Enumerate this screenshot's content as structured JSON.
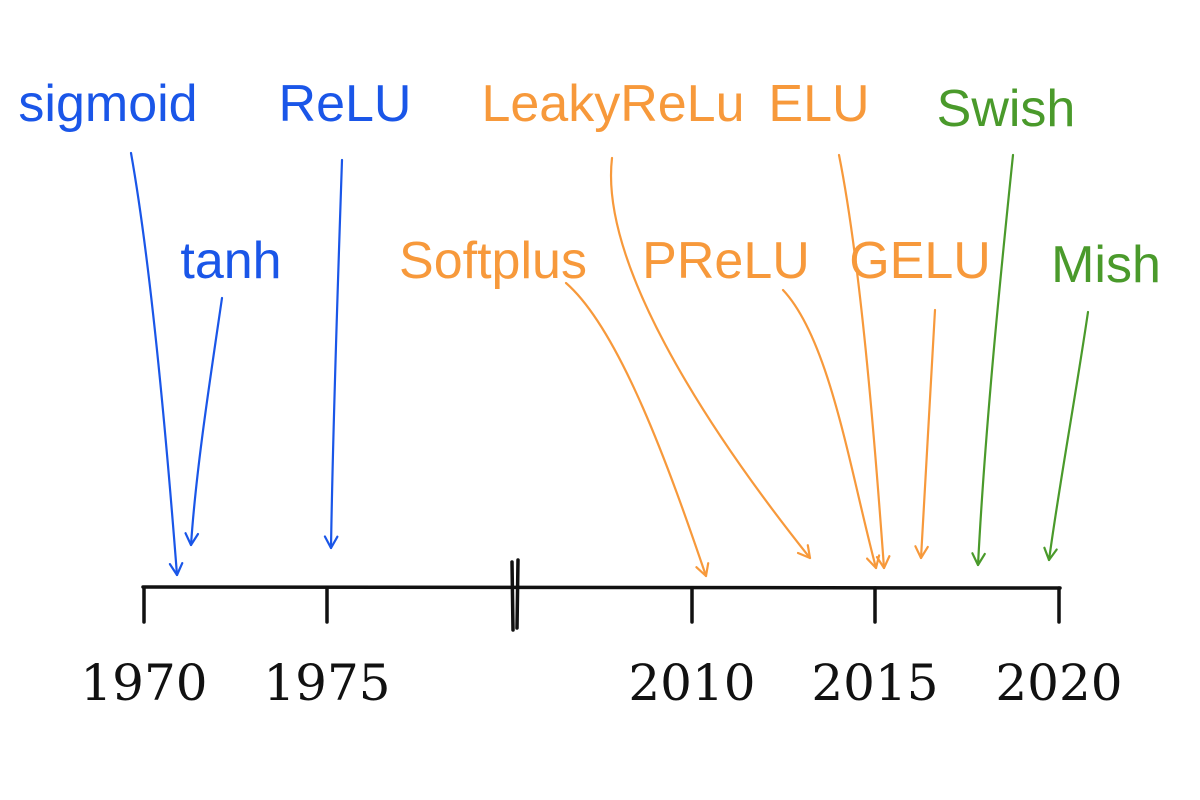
{
  "colors": {
    "blue": "#1a56e8",
    "orange": "#f7993b",
    "green": "#4a9a2b",
    "axis": "#111111"
  },
  "timeline": {
    "year_labels": [
      "1970",
      "1975",
      "2010",
      "2015",
      "2020"
    ],
    "axis_break": "between 1975 and 2010"
  },
  "functions": [
    {
      "label": "sigmoid",
      "group": "blue",
      "year": 1971.0
    },
    {
      "label": "tanh",
      "group": "blue",
      "year": 1971.3
    },
    {
      "label": "ReLU",
      "group": "blue",
      "year": 1975.2
    },
    {
      "label": "Softplus",
      "group": "orange",
      "year": 2010.4
    },
    {
      "label": "LeakyReLu",
      "group": "orange",
      "year": 2013.2
    },
    {
      "label": "PReLU",
      "group": "orange",
      "year": 2015.0
    },
    {
      "label": "ELU",
      "group": "orange",
      "year": 2015.3
    },
    {
      "label": "GELU",
      "group": "orange",
      "year": 2016.3
    },
    {
      "label": "Swish",
      "group": "green",
      "year": 2017.8
    },
    {
      "label": "Mish",
      "group": "green",
      "year": 2019.7
    }
  ]
}
